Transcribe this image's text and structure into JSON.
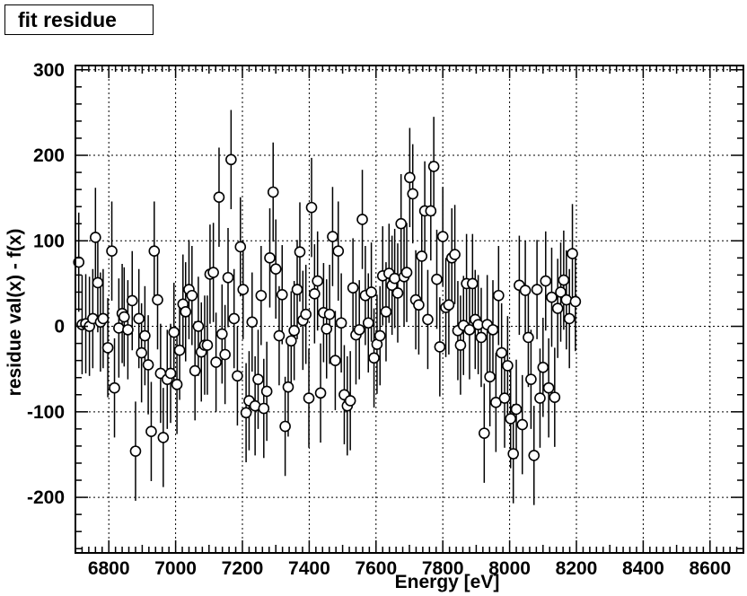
{
  "title_box": {
    "text": "fit residue"
  },
  "chart_data": {
    "type": "scatter",
    "title": "fit residue",
    "xlabel": "Energy [eV]",
    "ylabel": "residue val(x) - f(x)",
    "xlim": [
      6700,
      8700
    ],
    "ylim": [
      -265,
      305
    ],
    "xticks": [
      6800,
      7000,
      7200,
      7400,
      7600,
      7800,
      8000,
      8200,
      8400,
      8600
    ],
    "yticks": [
      -200,
      -100,
      0,
      100,
      200,
      300
    ],
    "grid": true,
    "points": [
      [
        6710,
        75,
        58
      ],
      [
        6720,
        2,
        58
      ],
      [
        6731,
        3,
        58
      ],
      [
        6742,
        0,
        58
      ],
      [
        6752,
        9,
        58
      ],
      [
        6760,
        104,
        58
      ],
      [
        6767,
        51,
        58
      ],
      [
        6775,
        5,
        58
      ],
      [
        6783,
        9,
        58
      ],
      [
        6797,
        -25,
        58
      ],
      [
        6809,
        88,
        58
      ],
      [
        6817,
        -72,
        58
      ],
      [
        6830,
        -2,
        58
      ],
      [
        6840,
        15,
        58
      ],
      [
        6846,
        11,
        58
      ],
      [
        6857,
        -4,
        58
      ],
      [
        6870,
        30,
        58
      ],
      [
        6880,
        -146,
        58
      ],
      [
        6890,
        9,
        58
      ],
      [
        6898,
        -31,
        58
      ],
      [
        6908,
        -11,
        58
      ],
      [
        6918,
        -45,
        58
      ],
      [
        6927,
        -123,
        58
      ],
      [
        6936,
        88,
        58
      ],
      [
        6946,
        31,
        58
      ],
      [
        6955,
        -55,
        58
      ],
      [
        6963,
        -130,
        58
      ],
      [
        6975,
        -62,
        58
      ],
      [
        6985,
        -55,
        58
      ],
      [
        6995,
        -7,
        58
      ],
      [
        7004,
        -68,
        58
      ],
      [
        7012,
        -28,
        58
      ],
      [
        7022,
        26,
        58
      ],
      [
        7030,
        17,
        58
      ],
      [
        7040,
        43,
        58
      ],
      [
        7049,
        36,
        58
      ],
      [
        7058,
        -52,
        58
      ],
      [
        7068,
        0,
        58
      ],
      [
        7077,
        -30,
        58
      ],
      [
        7087,
        -22,
        58
      ],
      [
        7095,
        -22,
        58
      ],
      [
        7103,
        61,
        58
      ],
      [
        7113,
        63,
        58
      ],
      [
        7121,
        -42,
        58
      ],
      [
        7130,
        151,
        58
      ],
      [
        7139,
        -9,
        58
      ],
      [
        7148,
        -33,
        58
      ],
      [
        7157,
        57,
        58
      ],
      [
        7166,
        195,
        58
      ],
      [
        7175,
        9,
        58
      ],
      [
        7185,
        -58,
        58
      ],
      [
        7194,
        93,
        58
      ],
      [
        7202,
        43,
        58
      ],
      [
        7211,
        -101,
        58
      ],
      [
        7220,
        -87,
        58
      ],
      [
        7229,
        5,
        58
      ],
      [
        7238,
        -93,
        58
      ],
      [
        7247,
        -62,
        58
      ],
      [
        7256,
        36,
        58
      ],
      [
        7264,
        -96,
        58
      ],
      [
        7273,
        -76,
        58
      ],
      [
        7282,
        80,
        58
      ],
      [
        7292,
        157,
        58
      ],
      [
        7300,
        67,
        58
      ],
      [
        7310,
        -11,
        58
      ],
      [
        7319,
        37,
        58
      ],
      [
        7328,
        -117,
        58
      ],
      [
        7337,
        -71,
        58
      ],
      [
        7346,
        -17,
        58
      ],
      [
        7355,
        -5,
        58
      ],
      [
        7364,
        43,
        58
      ],
      [
        7372,
        87,
        58
      ],
      [
        7381,
        7,
        58
      ],
      [
        7390,
        14,
        58
      ],
      [
        7399,
        -84,
        58
      ],
      [
        7407,
        139,
        58
      ],
      [
        7416,
        38,
        58
      ],
      [
        7425,
        53,
        58
      ],
      [
        7434,
        -78,
        58
      ],
      [
        7443,
        16,
        58
      ],
      [
        7452,
        -3,
        58
      ],
      [
        7461,
        14,
        58
      ],
      [
        7470,
        105,
        58
      ],
      [
        7478,
        -40,
        58
      ],
      [
        7487,
        88,
        58
      ],
      [
        7496,
        4,
        58
      ],
      [
        7505,
        -80,
        58
      ],
      [
        7514,
        -93,
        58
      ],
      [
        7523,
        -87,
        58
      ],
      [
        7531,
        45,
        58
      ],
      [
        7540,
        -10,
        58
      ],
      [
        7550,
        -4,
        58
      ],
      [
        7559,
        125,
        58
      ],
      [
        7568,
        36,
        58
      ],
      [
        7577,
        4,
        58
      ],
      [
        7586,
        40,
        58
      ],
      [
        7594,
        -37,
        58
      ],
      [
        7603,
        -21,
        58
      ],
      [
        7612,
        -11,
        58
      ],
      [
        7620,
        59,
        58
      ],
      [
        7630,
        17,
        58
      ],
      [
        7639,
        62,
        58
      ],
      [
        7648,
        48,
        58
      ],
      [
        7656,
        56,
        58
      ],
      [
        7665,
        39,
        58
      ],
      [
        7675,
        120,
        58
      ],
      [
        7684,
        58,
        58
      ],
      [
        7692,
        63,
        58
      ],
      [
        7701,
        174,
        58
      ],
      [
        7710,
        155,
        58
      ],
      [
        7719,
        31,
        58
      ],
      [
        7728,
        25,
        58
      ],
      [
        7737,
        82,
        58
      ],
      [
        7746,
        135,
        58
      ],
      [
        7755,
        8,
        58
      ],
      [
        7764,
        135,
        58
      ],
      [
        7773,
        187,
        58
      ],
      [
        7782,
        55,
        58
      ],
      [
        7791,
        -24,
        58
      ],
      [
        7800,
        105,
        58
      ],
      [
        7809,
        22,
        58
      ],
      [
        7818,
        25,
        58
      ],
      [
        7827,
        80,
        58
      ],
      [
        7836,
        84,
        58
      ],
      [
        7845,
        -5,
        58
      ],
      [
        7853,
        -22,
        58
      ],
      [
        7862,
        1,
        58
      ],
      [
        7871,
        50,
        58
      ],
      [
        7880,
        -4,
        58
      ],
      [
        7889,
        50,
        58
      ],
      [
        7897,
        8,
        58
      ],
      [
        7906,
        2,
        58
      ],
      [
        7915,
        -13,
        58
      ],
      [
        7924,
        -125,
        58
      ],
      [
        7933,
        2,
        58
      ],
      [
        7941,
        -59,
        58
      ],
      [
        7950,
        -4,
        58
      ],
      [
        7959,
        -89,
        58
      ],
      [
        7967,
        36,
        58
      ],
      [
        7976,
        -31,
        58
      ],
      [
        7985,
        -84,
        58
      ],
      [
        7994,
        -46,
        58
      ],
      [
        8003,
        -108,
        58
      ],
      [
        8011,
        -149,
        58
      ],
      [
        8020,
        -97,
        58
      ],
      [
        8029,
        48,
        58
      ],
      [
        8038,
        -115,
        58
      ],
      [
        8047,
        42,
        58
      ],
      [
        8056,
        -13,
        58
      ],
      [
        8064,
        -62,
        58
      ],
      [
        8073,
        -151,
        58
      ],
      [
        8082,
        43,
        58
      ],
      [
        8091,
        -84,
        58
      ],
      [
        8100,
        -48,
        58
      ],
      [
        8108,
        53,
        58
      ],
      [
        8117,
        -72,
        58
      ],
      [
        8126,
        34,
        58
      ],
      [
        8135,
        -83,
        58
      ],
      [
        8144,
        21,
        58
      ],
      [
        8153,
        40,
        58
      ],
      [
        8162,
        54,
        58
      ],
      [
        8170,
        31,
        58
      ],
      [
        8179,
        9,
        58
      ],
      [
        8188,
        85,
        58
      ],
      [
        8197,
        29,
        58
      ]
    ]
  }
}
